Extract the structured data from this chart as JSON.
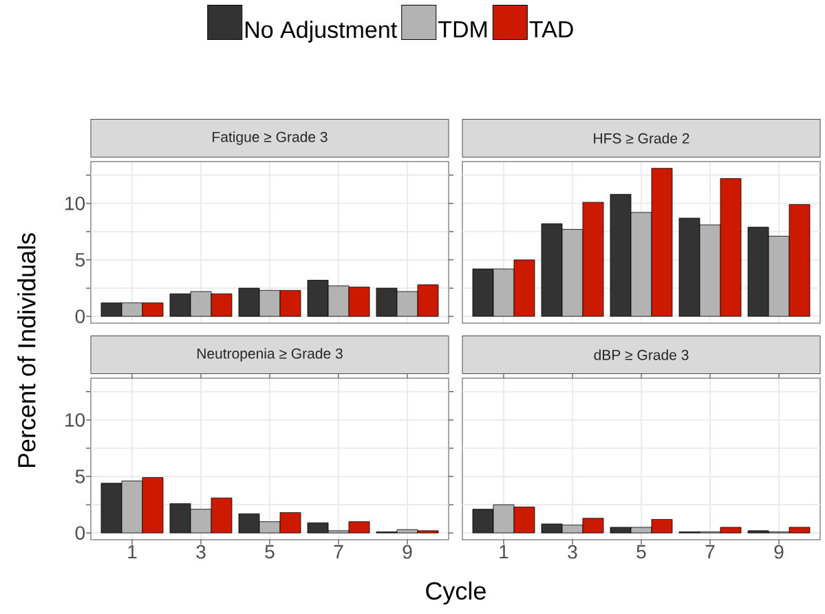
{
  "chart_data": [
    {
      "type": "bar",
      "title": "Fatigue ≥ Grade 3",
      "ylabel": "Percent of Individuals",
      "x": [
        1,
        3,
        5,
        7,
        9
      ],
      "xlim": [
        -0.2,
        10.2
      ],
      "ylim": [
        -0.6,
        13.7
      ],
      "xticks": [
        1,
        3,
        5,
        7,
        9
      ],
      "yticks": [
        0,
        {
          "value": 2.5,
          "label": null
        },
        5,
        {
          "value": 7.5,
          "label": null
        },
        10,
        {
          "value": 12.5,
          "label": null
        }
      ],
      "grid": true,
      "tick_labels": "y",
      "legend": "top",
      "series": [
        {
          "name": "No Adjustment",
          "color": "#333333",
          "values": [
            1.2,
            2.0,
            2.5,
            3.2,
            2.5
          ]
        },
        {
          "name": "TDM",
          "color": "#b3b3b3",
          "values": [
            1.2,
            2.2,
            2.3,
            2.7,
            2.2
          ]
        },
        {
          "name": "TAD",
          "color": "#cc1a00",
          "values": [
            1.2,
            2.0,
            2.3,
            2.6,
            2.8
          ]
        }
      ]
    },
    {
      "type": "bar",
      "title": "HFS ≥ Grade 2",
      "x": [
        1,
        3,
        5,
        7,
        9
      ],
      "xlim": [
        -0.2,
        10.2
      ],
      "ylim": [
        -0.6,
        13.7
      ],
      "xticks": [
        1,
        3,
        5,
        7,
        9
      ],
      "yticks": [
        0,
        {
          "value": 2.5,
          "label": null
        },
        5,
        {
          "value": 7.5,
          "label": null
        },
        10,
        {
          "value": 12.5,
          "label": null
        }
      ],
      "grid": true,
      "tick_labels": false,
      "series": [
        {
          "color": "#333333",
          "values": [
            4.2,
            8.2,
            10.8,
            8.7,
            7.9
          ]
        },
        {
          "color": "#b3b3b3",
          "values": [
            4.2,
            7.7,
            9.2,
            8.1,
            7.1
          ]
        },
        {
          "color": "#cc1a00",
          "values": [
            5.0,
            10.1,
            13.1,
            12.2,
            9.9
          ]
        }
      ]
    },
    {
      "type": "bar",
      "title": "Neutropenia ≥ Grade 3",
      "xlabel": "Cycle",
      "x": [
        1,
        3,
        5,
        7,
        9
      ],
      "xlim": [
        -0.2,
        10.2
      ],
      "ylim": [
        -0.6,
        13.7
      ],
      "xticks": [
        1,
        3,
        5,
        7,
        9
      ],
      "yticks": [
        0,
        {
          "value": 2.5,
          "label": null
        },
        5,
        {
          "value": 7.5,
          "label": null
        },
        10,
        {
          "value": 12.5,
          "label": null
        }
      ],
      "grid": true,
      "series": [
        {
          "color": "#333333",
          "values": [
            4.4,
            2.6,
            1.7,
            0.9,
            0.1
          ]
        },
        {
          "color": "#b3b3b3",
          "values": [
            4.6,
            2.1,
            1.0,
            0.2,
            0.3
          ]
        },
        {
          "color": "#cc1a00",
          "values": [
            4.9,
            3.1,
            1.8,
            1.0,
            0.2
          ]
        }
      ]
    },
    {
      "type": "bar",
      "title": "dBP ≥ Grade 3",
      "x": [
        1,
        3,
        5,
        7,
        9
      ],
      "xlim": [
        -0.2,
        10.2
      ],
      "ylim": [
        -0.6,
        13.7
      ],
      "xticks": [
        1,
        3,
        5,
        7,
        9
      ],
      "yticks": [
        0,
        {
          "value": 2.5,
          "label": null
        },
        5,
        {
          "value": 7.5,
          "label": null
        },
        10,
        {
          "value": 12.5,
          "label": null
        }
      ],
      "grid": true,
      "tick_labels": "x",
      "series": [
        {
          "color": "#333333",
          "values": [
            2.1,
            0.8,
            0.5,
            0.1,
            0.2
          ]
        },
        {
          "color": "#b3b3b3",
          "values": [
            2.5,
            0.7,
            0.5,
            0.1,
            0.1
          ]
        },
        {
          "color": "#cc1a00",
          "values": [
            2.3,
            1.3,
            1.2,
            0.5,
            0.5
          ]
        }
      ]
    }
  ]
}
